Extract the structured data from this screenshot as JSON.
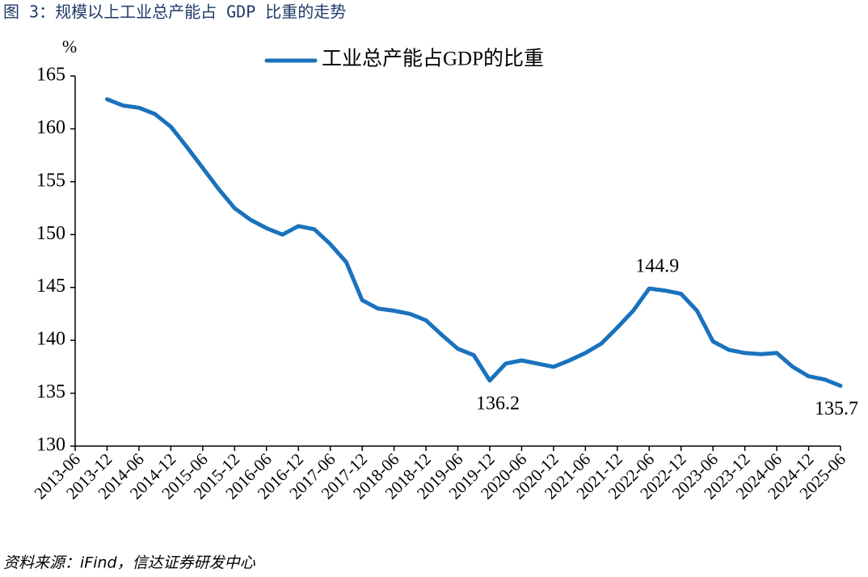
{
  "chart_data": {
    "type": "line",
    "title": "图 3：规模以上工业总产能占 GDP 比重的走势",
    "y_label": "%",
    "source": "资料来源：iFind，信达证券研发中心",
    "categories": [
      "2013-06",
      null,
      "2013-12",
      null,
      "2014-06",
      null,
      "2014-12",
      null,
      "2015-06",
      null,
      "2015-12",
      null,
      "2016-06",
      null,
      "2016-12",
      null,
      "2017-06",
      null,
      "2017-12",
      null,
      "2018-06",
      null,
      "2018-12",
      null,
      "2019-06",
      null,
      "2019-12",
      null,
      "2020-06",
      null,
      "2020-12",
      null,
      "2021-06",
      null,
      "2021-12",
      null,
      "2022-06",
      null,
      "2022-12",
      null,
      "2023-06",
      null,
      "2023-12",
      null,
      "2024-06",
      null,
      "2024-12",
      null,
      "2025-06"
    ],
    "series": [
      {
        "name": "工业总产能占GDP的比重",
        "color": "#1a72bd",
        "values": [
          null,
          null,
          162.8,
          162.2,
          162.0,
          161.4,
          160.2,
          158.3,
          156.3,
          154.3,
          152.5,
          151.4,
          150.6,
          150.0,
          150.8,
          150.5,
          149.1,
          147.4,
          143.8,
          143.0,
          142.8,
          142.5,
          141.9,
          140.5,
          139.2,
          138.6,
          136.2,
          137.8,
          138.1,
          137.8,
          137.5,
          138.1,
          138.8,
          139.7,
          141.2,
          142.8,
          144.9,
          144.7,
          144.4,
          142.8,
          139.9,
          139.1,
          138.8,
          138.7,
          138.8,
          137.5,
          136.6,
          136.3,
          135.7
        ],
        "value_labels": [
          null,
          null,
          null,
          null,
          null,
          null,
          null,
          null,
          null,
          null,
          null,
          null,
          null,
          null,
          null,
          null,
          null,
          null,
          null,
          null,
          null,
          null,
          null,
          null,
          null,
          null,
          "136.2",
          null,
          null,
          null,
          null,
          null,
          null,
          null,
          null,
          null,
          "144.9",
          null,
          null,
          null,
          null,
          null,
          null,
          null,
          null,
          null,
          null,
          null,
          "135.7"
        ]
      }
    ],
    "ylim": [
      130,
      165
    ],
    "yticks": [
      130,
      135,
      140,
      145,
      150,
      155,
      160,
      165
    ],
    "grid": false,
    "legend": "top"
  }
}
